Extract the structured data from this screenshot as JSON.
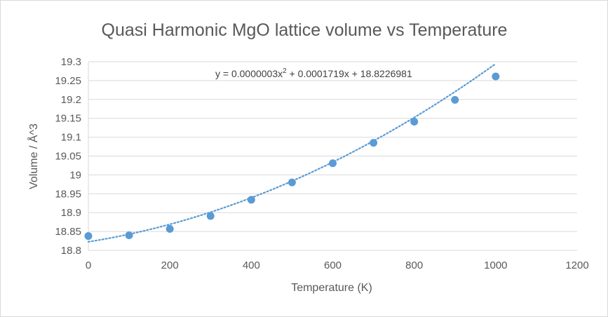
{
  "chart_data": {
    "type": "scatter",
    "title": "Quasi Harmonic MgO lattice volume vs Temperature",
    "xlabel": "Temperature (K)",
    "ylabel": "Volume / Å^3",
    "xlim": [
      0,
      1200
    ],
    "ylim": [
      18.8,
      19.3
    ],
    "xticks": [
      0,
      200,
      400,
      600,
      800,
      1000,
      1200
    ],
    "xtick_labels": [
      "0",
      "200",
      "400",
      "600",
      "800",
      "1000",
      "1200"
    ],
    "yticks": [
      18.8,
      18.85,
      18.9,
      18.95,
      19.0,
      19.05,
      19.1,
      19.15,
      19.2,
      19.25,
      19.3
    ],
    "ytick_labels": [
      "18.8",
      "18.85",
      "18.9",
      "18.95",
      "19",
      "19.05",
      "19.1",
      "19.15",
      "19.2",
      "19.25",
      "19.3"
    ],
    "grid": true,
    "series": [
      {
        "name": "Volume",
        "color": "#5b9bd5",
        "x": [
          0,
          100,
          200,
          300,
          400,
          500,
          600,
          700,
          800,
          900,
          1000
        ],
        "y": [
          18.838,
          18.84,
          18.857,
          18.891,
          18.934,
          18.98,
          19.031,
          19.085,
          19.141,
          19.199,
          19.261
        ]
      }
    ],
    "trendline": {
      "type": "polynomial",
      "order": 2,
      "coefficients": [
        3e-07,
        0.0001719,
        18.8226981
      ],
      "x_range": [
        0,
        1000
      ],
      "color": "#5b9bd5",
      "style": "dotted",
      "equation_prefix": "y = 0.0000003x",
      "equation_superscript": "2",
      "equation_suffix": " + 0.0001719x + 18.8226981"
    }
  }
}
